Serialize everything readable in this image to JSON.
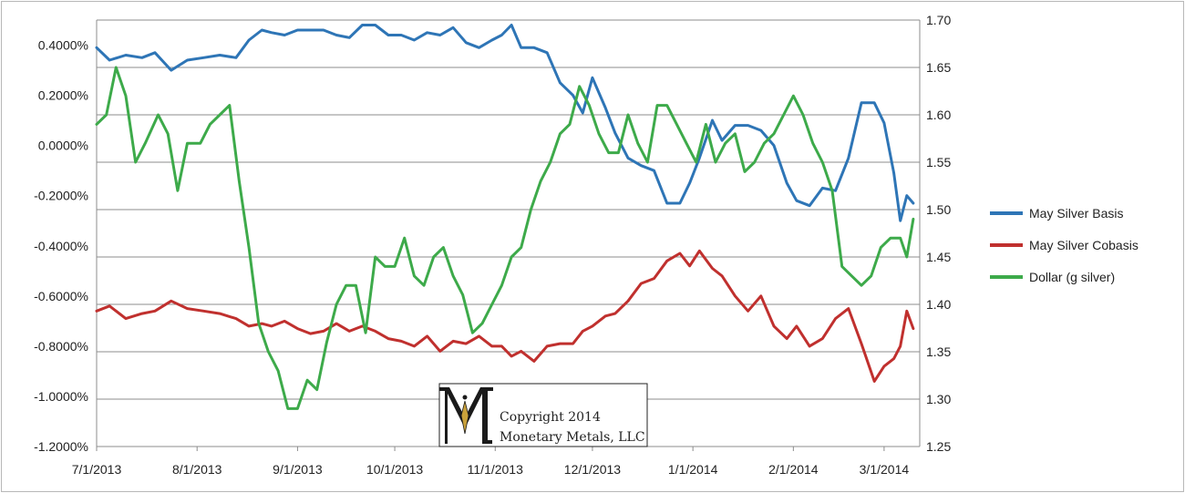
{
  "chart_data": {
    "type": "line",
    "x_ticks": [
      "7/1/2013",
      "8/1/2013",
      "9/1/2013",
      "10/1/2013",
      "11/1/2013",
      "12/1/2013",
      "1/1/2014",
      "2/1/2014",
      "3/1/2014"
    ],
    "left_axis": {
      "ticks": [
        "0.4000%",
        "0.2000%",
        "0.0000%",
        "-0.2000%",
        "-0.4000%",
        "-0.6000%",
        "-0.8000%",
        "-1.0000%",
        "-1.2000%"
      ],
      "range": [
        -1.2,
        0.5
      ],
      "unit": "%"
    },
    "right_axis": {
      "ticks": [
        "1.70",
        "1.65",
        "1.60",
        "1.55",
        "1.50",
        "1.45",
        "1.40",
        "1.35",
        "1.30",
        "1.25"
      ],
      "range": [
        1.25,
        1.7
      ]
    },
    "grid": "horizontal",
    "legend_position": "right",
    "series": [
      {
        "name": "May Silver Basis",
        "axis": "left",
        "color": "#2e75b6",
        "points": [
          [
            "2013-07-01",
            0.39
          ],
          [
            "2013-07-05",
            0.34
          ],
          [
            "2013-07-10",
            0.36
          ],
          [
            "2013-07-15",
            0.35
          ],
          [
            "2013-07-19",
            0.37
          ],
          [
            "2013-07-24",
            0.3
          ],
          [
            "2013-07-29",
            0.34
          ],
          [
            "2013-08-03",
            0.35
          ],
          [
            "2013-08-08",
            0.36
          ],
          [
            "2013-08-13",
            0.35
          ],
          [
            "2013-08-17",
            0.42
          ],
          [
            "2013-08-21",
            0.46
          ],
          [
            "2013-08-24",
            0.45
          ],
          [
            "2013-08-28",
            0.44
          ],
          [
            "2013-09-01",
            0.46
          ],
          [
            "2013-09-05",
            0.46
          ],
          [
            "2013-09-09",
            0.46
          ],
          [
            "2013-09-13",
            0.44
          ],
          [
            "2013-09-17",
            0.43
          ],
          [
            "2013-09-21",
            0.48
          ],
          [
            "2013-09-25",
            0.48
          ],
          [
            "2013-09-29",
            0.44
          ],
          [
            "2013-10-03",
            0.44
          ],
          [
            "2013-10-07",
            0.42
          ],
          [
            "2013-10-11",
            0.45
          ],
          [
            "2013-10-15",
            0.44
          ],
          [
            "2013-10-19",
            0.47
          ],
          [
            "2013-10-23",
            0.41
          ],
          [
            "2013-10-27",
            0.39
          ],
          [
            "2013-10-31",
            0.42
          ],
          [
            "2013-11-03",
            0.44
          ],
          [
            "2013-11-06",
            0.48
          ],
          [
            "2013-11-09",
            0.39
          ],
          [
            "2013-11-13",
            0.39
          ],
          [
            "2013-11-17",
            0.37
          ],
          [
            "2013-11-21",
            0.25
          ],
          [
            "2013-11-25",
            0.2
          ],
          [
            "2013-11-28",
            0.13
          ],
          [
            "2013-12-01",
            0.27
          ],
          [
            "2013-12-05",
            0.15
          ],
          [
            "2013-12-08",
            0.05
          ],
          [
            "2013-12-12",
            -0.05
          ],
          [
            "2013-12-16",
            -0.08
          ],
          [
            "2013-12-20",
            -0.1
          ],
          [
            "2013-12-24",
            -0.23
          ],
          [
            "2013-12-28",
            -0.23
          ],
          [
            "2013-12-31",
            -0.15
          ],
          [
            "2014-01-03",
            -0.05
          ],
          [
            "2014-01-07",
            0.1
          ],
          [
            "2014-01-10",
            0.02
          ],
          [
            "2014-01-14",
            0.08
          ],
          [
            "2014-01-18",
            0.08
          ],
          [
            "2014-01-22",
            0.06
          ],
          [
            "2014-01-26",
            0.0
          ],
          [
            "2014-01-30",
            -0.15
          ],
          [
            "2014-02-02",
            -0.22
          ],
          [
            "2014-02-06",
            -0.24
          ],
          [
            "2014-02-10",
            -0.17
          ],
          [
            "2014-02-14",
            -0.18
          ],
          [
            "2014-02-18",
            -0.05
          ],
          [
            "2014-02-22",
            0.17
          ],
          [
            "2014-02-26",
            0.17
          ],
          [
            "2014-03-01",
            0.09
          ],
          [
            "2014-03-04",
            -0.11
          ],
          [
            "2014-03-06",
            -0.3
          ],
          [
            "2014-03-08",
            -0.2
          ],
          [
            "2014-03-10",
            -0.23
          ]
        ]
      },
      {
        "name": "May Silver Cobasis",
        "axis": "left",
        "color": "#c0302e",
        "points": [
          [
            "2013-07-01",
            -0.66
          ],
          [
            "2013-07-05",
            -0.64
          ],
          [
            "2013-07-10",
            -0.69
          ],
          [
            "2013-07-15",
            -0.67
          ],
          [
            "2013-07-19",
            -0.66
          ],
          [
            "2013-07-24",
            -0.62
          ],
          [
            "2013-07-29",
            -0.65
          ],
          [
            "2013-08-03",
            -0.66
          ],
          [
            "2013-08-08",
            -0.67
          ],
          [
            "2013-08-13",
            -0.69
          ],
          [
            "2013-08-17",
            -0.72
          ],
          [
            "2013-08-21",
            -0.71
          ],
          [
            "2013-08-24",
            -0.72
          ],
          [
            "2013-08-28",
            -0.7
          ],
          [
            "2013-09-01",
            -0.73
          ],
          [
            "2013-09-05",
            -0.75
          ],
          [
            "2013-09-09",
            -0.74
          ],
          [
            "2013-09-13",
            -0.71
          ],
          [
            "2013-09-17",
            -0.74
          ],
          [
            "2013-09-21",
            -0.72
          ],
          [
            "2013-09-25",
            -0.74
          ],
          [
            "2013-09-29",
            -0.77
          ],
          [
            "2013-10-03",
            -0.78
          ],
          [
            "2013-10-07",
            -0.8
          ],
          [
            "2013-10-11",
            -0.76
          ],
          [
            "2013-10-15",
            -0.82
          ],
          [
            "2013-10-19",
            -0.78
          ],
          [
            "2013-10-23",
            -0.79
          ],
          [
            "2013-10-27",
            -0.76
          ],
          [
            "2013-10-31",
            -0.8
          ],
          [
            "2013-11-03",
            -0.8
          ],
          [
            "2013-11-06",
            -0.84
          ],
          [
            "2013-11-09",
            -0.82
          ],
          [
            "2013-11-13",
            -0.86
          ],
          [
            "2013-11-17",
            -0.8
          ],
          [
            "2013-11-21",
            -0.79
          ],
          [
            "2013-11-25",
            -0.79
          ],
          [
            "2013-11-28",
            -0.74
          ],
          [
            "2013-12-01",
            -0.72
          ],
          [
            "2013-12-05",
            -0.68
          ],
          [
            "2013-12-08",
            -0.67
          ],
          [
            "2013-12-12",
            -0.62
          ],
          [
            "2013-12-16",
            -0.55
          ],
          [
            "2013-12-20",
            -0.53
          ],
          [
            "2013-12-24",
            -0.46
          ],
          [
            "2013-12-28",
            -0.43
          ],
          [
            "2013-12-31",
            -0.48
          ],
          [
            "2014-01-03",
            -0.42
          ],
          [
            "2014-01-07",
            -0.49
          ],
          [
            "2014-01-10",
            -0.52
          ],
          [
            "2014-01-14",
            -0.6
          ],
          [
            "2014-01-18",
            -0.66
          ],
          [
            "2014-01-22",
            -0.6
          ],
          [
            "2014-01-26",
            -0.72
          ],
          [
            "2014-01-30",
            -0.77
          ],
          [
            "2014-02-02",
            -0.72
          ],
          [
            "2014-02-06",
            -0.8
          ],
          [
            "2014-02-10",
            -0.77
          ],
          [
            "2014-02-14",
            -0.69
          ],
          [
            "2014-02-18",
            -0.65
          ],
          [
            "2014-02-22",
            -0.79
          ],
          [
            "2014-02-26",
            -0.94
          ],
          [
            "2014-03-01",
            -0.88
          ],
          [
            "2014-03-04",
            -0.85
          ],
          [
            "2014-03-06",
            -0.8
          ],
          [
            "2014-03-08",
            -0.66
          ],
          [
            "2014-03-10",
            -0.73
          ]
        ]
      },
      {
        "name": "Dollar (g silver)",
        "axis": "right",
        "color": "#3daa4a",
        "points": [
          [
            "2013-07-01",
            1.59
          ],
          [
            "2013-07-04",
            1.6
          ],
          [
            "2013-07-07",
            1.65
          ],
          [
            "2013-07-10",
            1.62
          ],
          [
            "2013-07-13",
            1.55
          ],
          [
            "2013-07-16",
            1.57
          ],
          [
            "2013-07-20",
            1.6
          ],
          [
            "2013-07-23",
            1.58
          ],
          [
            "2013-07-26",
            1.52
          ],
          [
            "2013-07-29",
            1.57
          ],
          [
            "2013-08-02",
            1.57
          ],
          [
            "2013-08-05",
            1.59
          ],
          [
            "2013-08-08",
            1.6
          ],
          [
            "2013-08-11",
            1.61
          ],
          [
            "2013-08-14",
            1.53
          ],
          [
            "2013-08-17",
            1.46
          ],
          [
            "2013-08-20",
            1.38
          ],
          [
            "2013-08-23",
            1.35
          ],
          [
            "2013-08-26",
            1.33
          ],
          [
            "2013-08-29",
            1.29
          ],
          [
            "2013-09-01",
            1.29
          ],
          [
            "2013-09-04",
            1.32
          ],
          [
            "2013-09-07",
            1.31
          ],
          [
            "2013-09-10",
            1.36
          ],
          [
            "2013-09-13",
            1.4
          ],
          [
            "2013-09-16",
            1.42
          ],
          [
            "2013-09-19",
            1.42
          ],
          [
            "2013-09-22",
            1.37
          ],
          [
            "2013-09-25",
            1.45
          ],
          [
            "2013-09-28",
            1.44
          ],
          [
            "2013-10-01",
            1.44
          ],
          [
            "2013-10-04",
            1.47
          ],
          [
            "2013-10-07",
            1.43
          ],
          [
            "2013-10-10",
            1.42
          ],
          [
            "2013-10-13",
            1.45
          ],
          [
            "2013-10-16",
            1.46
          ],
          [
            "2013-10-19",
            1.43
          ],
          [
            "2013-10-22",
            1.41
          ],
          [
            "2013-10-25",
            1.37
          ],
          [
            "2013-10-28",
            1.38
          ],
          [
            "2013-10-31",
            1.4
          ],
          [
            "2013-11-03",
            1.42
          ],
          [
            "2013-11-06",
            1.45
          ],
          [
            "2013-11-09",
            1.46
          ],
          [
            "2013-11-12",
            1.5
          ],
          [
            "2013-11-15",
            1.53
          ],
          [
            "2013-11-18",
            1.55
          ],
          [
            "2013-11-21",
            1.58
          ],
          [
            "2013-11-24",
            1.59
          ],
          [
            "2013-11-27",
            1.63
          ],
          [
            "2013-11-30",
            1.61
          ],
          [
            "2013-12-03",
            1.58
          ],
          [
            "2013-12-06",
            1.56
          ],
          [
            "2013-12-09",
            1.56
          ],
          [
            "2013-12-12",
            1.6
          ],
          [
            "2013-12-15",
            1.57
          ],
          [
            "2013-12-18",
            1.55
          ],
          [
            "2013-12-21",
            1.61
          ],
          [
            "2013-12-24",
            1.61
          ],
          [
            "2013-12-27",
            1.59
          ],
          [
            "2013-12-30",
            1.57
          ],
          [
            "2014-01-02",
            1.55
          ],
          [
            "2014-01-05",
            1.59
          ],
          [
            "2014-01-08",
            1.55
          ],
          [
            "2014-01-11",
            1.57
          ],
          [
            "2014-01-14",
            1.58
          ],
          [
            "2014-01-17",
            1.54
          ],
          [
            "2014-01-20",
            1.55
          ],
          [
            "2014-01-23",
            1.57
          ],
          [
            "2014-01-26",
            1.58
          ],
          [
            "2014-01-29",
            1.6
          ],
          [
            "2014-02-01",
            1.62
          ],
          [
            "2014-02-04",
            1.6
          ],
          [
            "2014-02-07",
            1.57
          ],
          [
            "2014-02-10",
            1.55
          ],
          [
            "2014-02-13",
            1.52
          ],
          [
            "2014-02-16",
            1.44
          ],
          [
            "2014-02-19",
            1.43
          ],
          [
            "2014-02-22",
            1.42
          ],
          [
            "2014-02-25",
            1.43
          ],
          [
            "2014-02-28",
            1.46
          ],
          [
            "2014-03-03",
            1.47
          ],
          [
            "2014-03-06",
            1.47
          ],
          [
            "2014-03-08",
            1.45
          ],
          [
            "2014-03-10",
            1.49
          ]
        ]
      }
    ]
  },
  "watermark": {
    "line1": "Copyright 2014",
    "line2": "Monetary Metals, LLC"
  }
}
